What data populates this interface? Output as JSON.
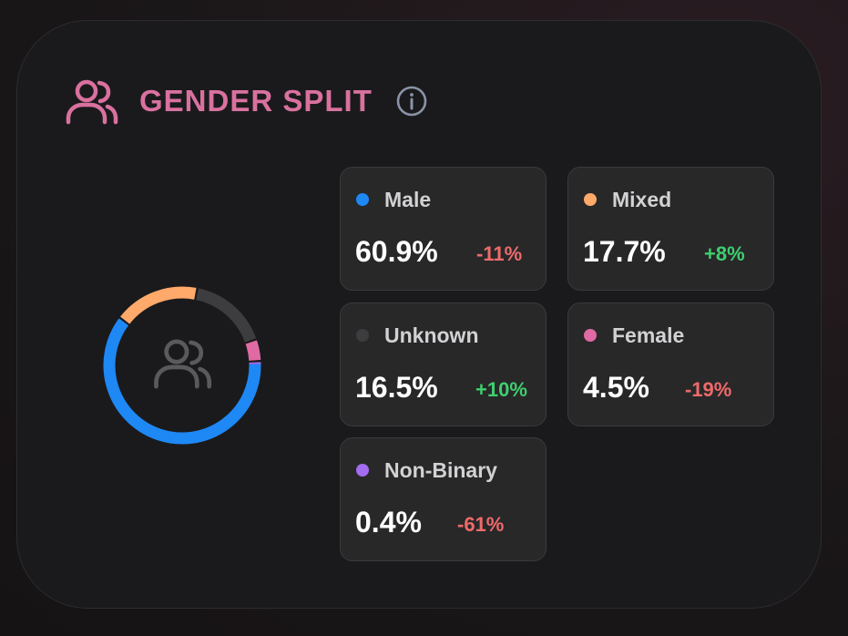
{
  "header": {
    "title": "GENDER SPLIT",
    "title_color": "#d9719f",
    "icon": "users-icon",
    "info_icon": "info-icon",
    "info_icon_color": "#8a93a6"
  },
  "chart_data": {
    "type": "pie",
    "style": "donut",
    "center_icon": "users-icon",
    "center_icon_color": "#5a5a5c",
    "series": [
      {
        "name": "Male",
        "value": 60.9,
        "display": "60.9%",
        "change": "-11%",
        "change_trend": "down",
        "color": "#1e88f5"
      },
      {
        "name": "Mixed",
        "value": 17.7,
        "display": "17.7%",
        "change": "+8%",
        "change_trend": "up",
        "color": "#ffa96b"
      },
      {
        "name": "Unknown",
        "value": 16.5,
        "display": "16.5%",
        "change": "+10%",
        "change_trend": "up",
        "color": "#3d3d3f"
      },
      {
        "name": "Female",
        "value": 4.5,
        "display": "4.5%",
        "change": "-19%",
        "change_trend": "down",
        "color": "#e06aa3"
      },
      {
        "name": "Non-Binary",
        "value": 0.4,
        "display": "0.4%",
        "change": "-61%",
        "change_trend": "down",
        "color": "#a46cf0"
      }
    ]
  },
  "colors": {
    "up": "#3ecf6e",
    "down": "#ef6a6a"
  }
}
